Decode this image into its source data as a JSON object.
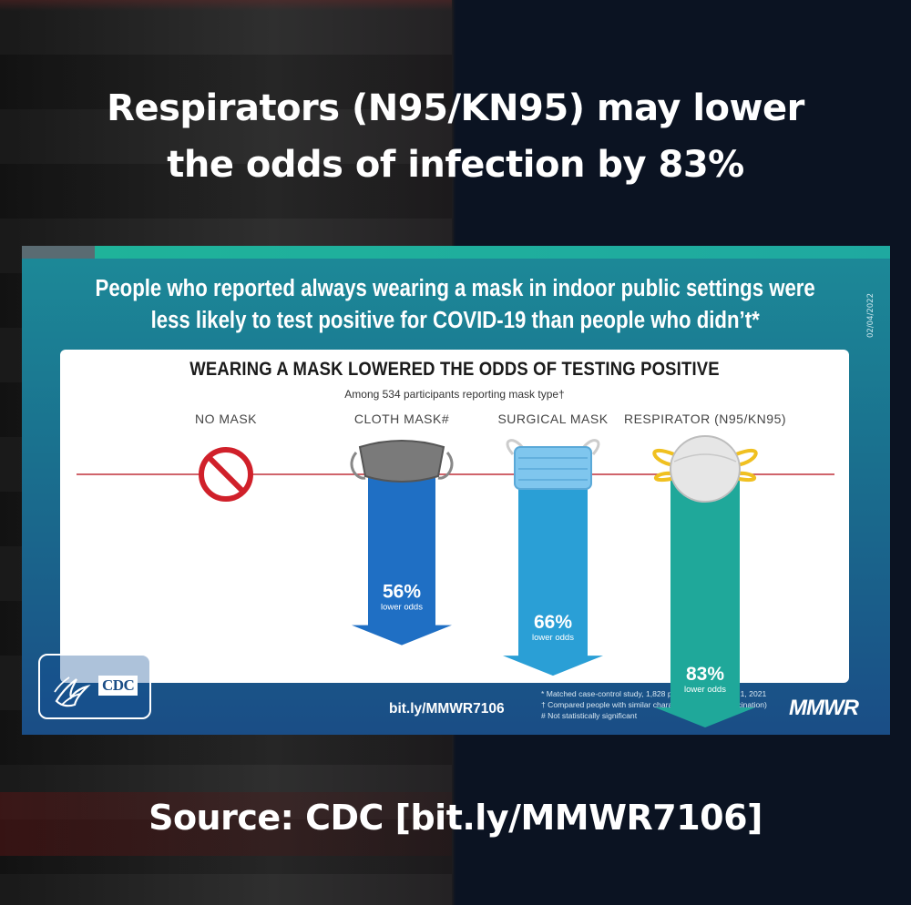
{
  "headline": {
    "line1": "Respirators (N95/KN95) may lower",
    "line2": "the odds of infection by 83%"
  },
  "source": "Source: CDC [bit.ly/MMWR7106]",
  "card": {
    "header_line1": "People who reported always wearing a mask in indoor public settings were",
    "header_line2": "less likely to test positive for COVID-19 than people who didn’t*",
    "date": "02/04/2022",
    "panel_title": "WEARING A MASK LOWERED THE ODDS OF TESTING POSITIVE",
    "panel_subtitle": "Among 534 participants reporting mask type†",
    "logo_text": "CDC",
    "link": "bit.ly/MMWR7106",
    "footnotes": [
      "* Matched case-control study, 1,828 people, Feb 10–Dec 1, 2021",
      "† Compared people with similar characteristics (e.g., vaccination)",
      "# Not statistically significant"
    ],
    "publisher": "MMWR"
  },
  "chart_data": {
    "type": "bar",
    "title": "WEARING A MASK LOWERED THE ODDS OF TESTING POSITIVE",
    "subtitle": "Among 534 participants reporting mask type†",
    "categories": [
      "NO MASK",
      "CLOTH MASK#",
      "SURGICAL MASK",
      "RESPIRATOR (N95/KN95)"
    ],
    "values": [
      0,
      56,
      66,
      83
    ],
    "value_labels": [
      "",
      "56%",
      "66%",
      "83%"
    ],
    "value_sublabel": "lower odds",
    "unit": "%",
    "direction": "downward",
    "colors": [
      "#d0202a",
      "#1f6fc4",
      "#2a9fd6",
      "#1fa89a"
    ],
    "icons": [
      "no-symbol-icon",
      "cloth-mask-icon",
      "surgical-mask-icon",
      "respirator-icon"
    ],
    "baseline_color": "#c0303a"
  },
  "colors": {
    "card_top": "#1c8a98",
    "card_bottom": "#1a4d86",
    "panel": "#ffffff"
  }
}
